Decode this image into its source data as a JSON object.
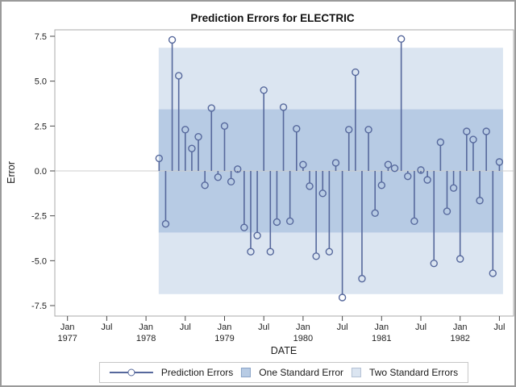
{
  "title": "Prediction Errors for ELECTRIC",
  "axes": {
    "y": {
      "label": "Error",
      "tick_labels": [
        "7.5",
        "5.0",
        "2.5",
        "0.0",
        "-2.5",
        "-5.0",
        "-7.5"
      ],
      "tick_values": [
        7.5,
        5.0,
        2.5,
        0.0,
        -2.5,
        -5.0,
        -7.5
      ]
    },
    "x": {
      "label": "DATE",
      "ticks": [
        {
          "month": "Jan",
          "year": "1977"
        },
        {
          "month": "Jul",
          "year": ""
        },
        {
          "month": "Jan",
          "year": "1978"
        },
        {
          "month": "Jul",
          "year": ""
        },
        {
          "month": "Jan",
          "year": "1979"
        },
        {
          "month": "Jul",
          "year": ""
        },
        {
          "month": "Jan",
          "year": "1980"
        },
        {
          "month": "Jul",
          "year": ""
        },
        {
          "month": "Jan",
          "year": "1981"
        },
        {
          "month": "Jul",
          "year": ""
        },
        {
          "month": "Jan",
          "year": "1982"
        },
        {
          "month": "Jul",
          "year": ""
        }
      ]
    }
  },
  "legend": {
    "items": [
      {
        "label": "Prediction Errors",
        "type": "line-marker"
      },
      {
        "label": "One Standard Error",
        "type": "swatch",
        "color": "#b7cbe4"
      },
      {
        "label": "Two Standard Errors",
        "type": "swatch",
        "color": "#dbe5f1"
      }
    ]
  },
  "chart_data": {
    "type": "needle",
    "title": "Prediction Errors for ELECTRIC",
    "xlabel": "DATE",
    "ylabel": "Error",
    "ylim": [
      -7.5,
      7.5
    ],
    "x_axis_range": [
      "Jan 1977",
      "Jul 1982"
    ],
    "series_name": "Prediction Errors",
    "frequency": "monthly",
    "dates": [
      "Mar 1978",
      "Apr 1978",
      "May 1978",
      "Jun 1978",
      "Jul 1978",
      "Aug 1978",
      "Sep 1978",
      "Oct 1978",
      "Nov 1978",
      "Dec 1978",
      "Jan 1979",
      "Feb 1979",
      "Mar 1979",
      "Apr 1979",
      "May 1979",
      "Jun 1979",
      "Jul 1979",
      "Aug 1979",
      "Sep 1979",
      "Oct 1979",
      "Nov 1979",
      "Dec 1979",
      "Jan 1980",
      "Feb 1980",
      "Mar 1980",
      "Apr 1980",
      "May 1980",
      "Jun 1980",
      "Jul 1980",
      "Aug 1980",
      "Sep 1980",
      "Oct 1980",
      "Nov 1980",
      "Dec 1980",
      "Jan 1981",
      "Feb 1981",
      "Mar 1981",
      "Apr 1981",
      "May 1981",
      "Jun 1981",
      "Jul 1981",
      "Aug 1981",
      "Sep 1981",
      "Oct 1981",
      "Nov 1981",
      "Dec 1981",
      "Jan 1982",
      "Feb 1982",
      "Mar 1982",
      "Apr 1982",
      "May 1982",
      "Jun 1982",
      "Jul 1982"
    ],
    "values": [
      0.7,
      -2.95,
      7.3,
      5.3,
      2.3,
      1.25,
      1.9,
      -0.8,
      3.5,
      -0.35,
      2.5,
      -0.6,
      0.1,
      -3.15,
      -4.5,
      -3.6,
      4.5,
      -4.5,
      -2.85,
      3.55,
      -2.8,
      2.35,
      0.35,
      -0.85,
      -4.75,
      -1.25,
      -4.5,
      0.45,
      -7.05,
      2.3,
      5.5,
      -6.0,
      2.3,
      -2.35,
      -0.8,
      0.35,
      0.15,
      7.35,
      -0.3,
      -2.8,
      0.05,
      -0.5,
      -5.15,
      1.6,
      -2.25,
      -0.95,
      -4.9,
      2.2,
      1.75,
      -1.65,
      2.2,
      -5.7,
      0.5
    ],
    "bands": {
      "one_standard_error": 3.43,
      "two_standard_errors": 6.86,
      "band_date_range": [
        "Mar 1978",
        "Jul 1982"
      ]
    },
    "legend_position": "bottom",
    "grid": "zero-reference-line-only"
  },
  "colors": {
    "stem": "#56689c",
    "one_std_band": "#b7cbe4",
    "two_std_band": "#dbe5f1",
    "plot_frame": "#aaaaaa",
    "zero_line": "#cccccc",
    "tick": "#4a4a4a",
    "text": "#1f1f1f"
  }
}
